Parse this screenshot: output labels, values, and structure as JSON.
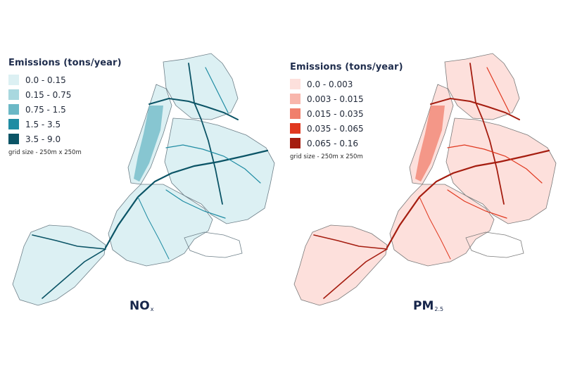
{
  "maps": [
    {
      "id": "nox",
      "legend": {
        "title": "Emissions (tons/year)",
        "grid_note": "grid size - 250m x 250m",
        "items": [
          {
            "label": "0.0 - 0.15",
            "color": "#dcf0f3"
          },
          {
            "label": "0.15 - 0.75",
            "color": "#a9d8df"
          },
          {
            "label": "0.75 - 1.5",
            "color": "#6bb8c6"
          },
          {
            "label": "1.5 - 3.5",
            "color": "#1f8ca3"
          },
          {
            "label": "3.5 - 9.0",
            "color": "#0b5466"
          }
        ]
      },
      "pollutant": {
        "main": "NO",
        "sub": "x"
      }
    },
    {
      "id": "pm25",
      "legend": {
        "title": "Emissions (tons/year)",
        "grid_note": "grid size - 250m x 250m",
        "items": [
          {
            "label": "0.0 - 0.003",
            "color": "#fde0dc"
          },
          {
            "label": "0.003 - 0.015",
            "color": "#f8b6ac"
          },
          {
            "label": "0.015 - 0.035",
            "color": "#f07f6c"
          },
          {
            "label": "0.035 - 0.065",
            "color": "#e0381f"
          },
          {
            "label": "0.065 - 0.16",
            "color": "#a51d10"
          }
        ]
      },
      "pollutant": {
        "main": "PM",
        "sub": "2.5"
      }
    }
  ]
}
